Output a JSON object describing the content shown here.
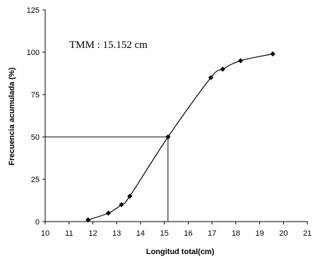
{
  "chart_data": {
    "type": "line",
    "title": "",
    "xlabel": "Longitud total(cm)",
    "ylabel": "Frecuencia  acumulada (%)",
    "xlim": [
      10,
      21
    ],
    "ylim": [
      0,
      125
    ],
    "xticks": [
      "10",
      "11",
      "12",
      "13",
      "14",
      "15",
      "16",
      "17",
      "18",
      "19",
      "20",
      "21"
    ],
    "yticks": [
      "0",
      "25",
      "50",
      "75",
      "100",
      "125"
    ],
    "grid": false,
    "series": [
      {
        "x": [
          11.8,
          12.65,
          13.2,
          13.55,
          15.152,
          16.95,
          17.45,
          18.2,
          19.55
        ],
        "y": [
          1,
          5,
          10,
          15,
          50,
          85,
          90,
          95,
          99
        ]
      }
    ],
    "annotation": "TMM : 15.152 cm",
    "reference_point": {
      "x": 15.152,
      "y": 50
    }
  }
}
